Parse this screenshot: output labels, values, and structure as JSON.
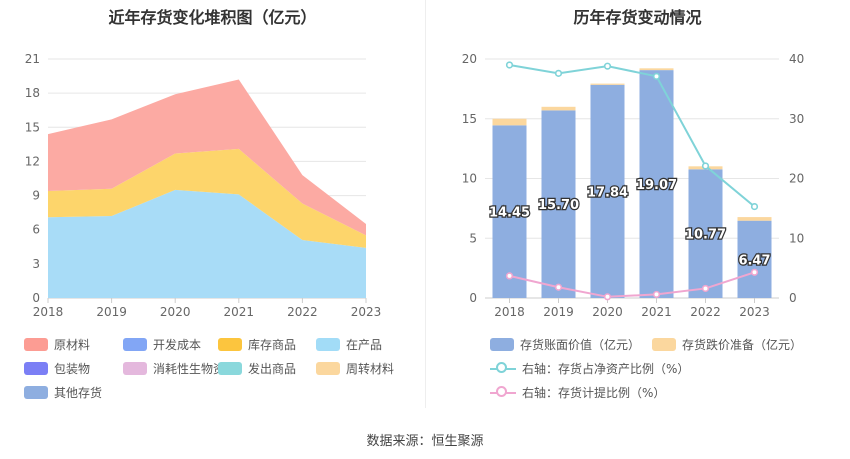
{
  "chart_data": [
    {
      "type": "area",
      "title": "近年存货变化堆积图（亿元）",
      "categories": [
        "2018",
        "2019",
        "2020",
        "2021",
        "2022",
        "2023"
      ],
      "y_ticks": [
        "0",
        "3",
        "6",
        "9",
        "12",
        "15",
        "18",
        "21"
      ],
      "ylim": [
        0,
        21
      ],
      "stacking": "stacked",
      "grid": true,
      "series": [
        {
          "name": "在产品",
          "color": "#a8dcf7",
          "values": [
            7.1,
            7.2,
            9.5,
            9.1,
            5.1,
            4.4
          ]
        },
        {
          "name": "库存商品",
          "color": "#fdd56b",
          "values": [
            2.3,
            2.4,
            3.2,
            4.0,
            3.2,
            1.1
          ]
        },
        {
          "name": "原材料",
          "color": "#fcaaa3",
          "values": [
            5.0,
            6.1,
            5.2,
            6.1,
            2.5,
            1.0
          ]
        }
      ],
      "legend": [
        {
          "name": "原材料",
          "color": "#fc9c93"
        },
        {
          "name": "开发成本",
          "color": "#82a6f5"
        },
        {
          "name": "库存商品",
          "color": "#fcc53e"
        },
        {
          "name": "在产品",
          "color": "#a2dcf7"
        },
        {
          "name": "包装物",
          "color": "#7b7ff5"
        },
        {
          "name": "消耗性生物资产",
          "color": "#e4b8dd"
        },
        {
          "name": "发出商品",
          "color": "#8ad8dc"
        },
        {
          "name": "周转材料",
          "color": "#fbd79e"
        },
        {
          "name": "其他存货",
          "color": "#8eaee0"
        }
      ]
    },
    {
      "type": "bar",
      "title": "历年存货变动情况",
      "categories": [
        "2018",
        "2019",
        "2020",
        "2021",
        "2022",
        "2023"
      ],
      "y_ticks": [
        "0",
        "5",
        "10",
        "15",
        "20"
      ],
      "ylim": [
        0,
        20
      ],
      "y2_ticks": [
        "0",
        "10",
        "20",
        "30",
        "40"
      ],
      "y2lim": [
        0,
        40
      ],
      "grid": true,
      "series": [
        {
          "name": "存货账面价值（亿元）",
          "color": "#8eaee0",
          "values": [
            14.45,
            15.7,
            17.84,
            19.07,
            10.77,
            6.47
          ],
          "labels": [
            "14.45",
            "15.70",
            "17.84",
            "19.07",
            "10.77",
            "6.47"
          ]
        },
        {
          "name": "存货跌价准备（亿元）",
          "color": "#fbd79e",
          "values": [
            0.55,
            0.3,
            0.1,
            0.15,
            0.25,
            0.3
          ]
        },
        {
          "name": "右轴：存货占净资产比例（%）",
          "color": "#7fd3d8",
          "axis": "right",
          "type": "line",
          "values": [
            39.0,
            37.6,
            38.8,
            37.1,
            22.1,
            15.3
          ]
        },
        {
          "name": "右轴：存货计提比例（%）",
          "color": "#f0a6d0",
          "axis": "right",
          "type": "line",
          "values": [
            3.7,
            1.8,
            0.2,
            0.6,
            1.6,
            4.3
          ]
        }
      ]
    }
  ],
  "source": "数据来源：恒生聚源"
}
